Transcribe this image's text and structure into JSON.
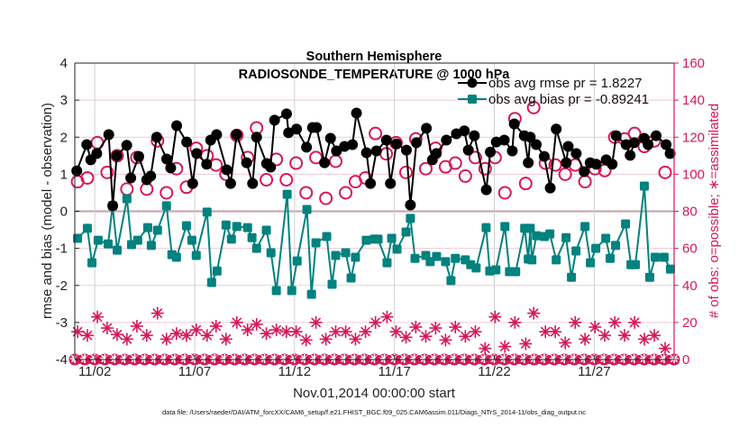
{
  "chart_data": {
    "type": "line",
    "title": [
      "Southern Hemisphere",
      "RADIOSONDE_TEMPERATURE @ 1000 hPa"
    ],
    "xlabel": "Nov.01,2014 00:00:00 start",
    "ylabel": "rmse and bias (model - observation)",
    "ylabel_right": "# of obs: o=possible; ∗=assimilated",
    "footer": "data file: /Users/raeder/DAI/ATM_forcXX/CAM6_setup/f.e21.FHIST_BGC.f09_025.CAM6assim.011/Diags_NTrS_2014-11/obs_diag_output.nc",
    "xlim": [
      0,
      30
    ],
    "ylim": [
      -4,
      4
    ],
    "ylim_right": [
      0,
      160
    ],
    "yticks": [
      "4",
      "3",
      "2",
      "1",
      "0",
      "-1",
      "-2",
      "-3",
      "-4"
    ],
    "yticks_right": [
      "160",
      "140",
      "120",
      "100",
      "80",
      "60",
      "40",
      "20",
      "0"
    ],
    "xticks": [
      {
        "day": 1,
        "label": "11/02"
      },
      {
        "day": 6,
        "label": "11/07"
      },
      {
        "day": 11,
        "label": "11/12"
      },
      {
        "day": 16,
        "label": "11/17"
      },
      {
        "day": 21,
        "label": "11/22"
      },
      {
        "day": 26,
        "label": "11/27"
      }
    ],
    "grid": true,
    "legend_position": "top-right",
    "colors": {
      "rmse": "#000000",
      "bias": "#00827f",
      "count": "#d6185a",
      "grid_v": "#d0d0d0",
      "grid_h": "#f1c9d6",
      "zero": "#c8a9b2"
    },
    "series": [
      {
        "name": "obs avg rmse pr = 1.8227",
        "axis": "left",
        "x": [
          0.1,
          0.6,
          0.8,
          1.1,
          1.7,
          1.9,
          2.1,
          2.6,
          2.8,
          3.2,
          3.6,
          3.8,
          4.1,
          4.6,
          4.8,
          5.1,
          5.6,
          5.9,
          6.1,
          6.6,
          6.8,
          7.1,
          7.6,
          7.8,
          8.1,
          8.6,
          8.9,
          9.1,
          9.6,
          9.8,
          10.0,
          10.6,
          10.7,
          11.1,
          11.6,
          11.9,
          12.1,
          12.5,
          12.8,
          13.1,
          13.5,
          13.9,
          14.1,
          14.6,
          14.8,
          15.1,
          15.6,
          15.8,
          16.1,
          16.6,
          16.8,
          17.1,
          17.6,
          17.9,
          18.1,
          18.6,
          19.1,
          19.5,
          19.7,
          20.0,
          20.6,
          20.8,
          21.1,
          21.5,
          21.9,
          22.0,
          22.5,
          22.7,
          22.8,
          23.1,
          23.5,
          23.8,
          24.1,
          24.6,
          24.7,
          25.1,
          25.5,
          25.8,
          26.1,
          26.6,
          26.9,
          27.1,
          27.6,
          27.8,
          28.0,
          28.5,
          28.7,
          29.1,
          29.6,
          29.8
        ],
        "values": [
          1.09,
          1.8,
          1.39,
          1.56,
          2.07,
          0.15,
          1.5,
          1.78,
          0.9,
          1.48,
          0.85,
          0.95,
          2.0,
          1.41,
          1.17,
          2.31,
          1.87,
          0.75,
          1.56,
          1.27,
          1.92,
          2.07,
          1.12,
          0.75,
          2.07,
          1.31,
          0.75,
          2.0,
          1.29,
          1.19,
          2.46,
          2.63,
          2.12,
          2.22,
          1.73,
          2.26,
          2.26,
          1.31,
          1.97,
          1.63,
          1.75,
          1.8,
          2.65,
          1.58,
          0.75,
          1.63,
          1.92,
          0.75,
          1.82,
          1.65,
          0.17,
          1.85,
          2.24,
          1.39,
          1.56,
          1.92,
          2.09,
          2.17,
          1.65,
          2.04,
          0.58,
          1.6,
          1.87,
          1.92,
          1.63,
          2.36,
          2.04,
          1.31,
          2.0,
          1.8,
          1.48,
          0.63,
          2.22,
          1.31,
          1.75,
          1.56,
          1.07,
          1.31,
          1.27,
          1.39,
          1.27,
          2.04,
          1.8,
          1.51,
          1.85,
          1.97,
          1.8,
          2.04,
          1.8,
          1.56
        ]
      },
      {
        "name": "obs avg bias pr = -0.89241",
        "axis": "left",
        "x": [
          0.14,
          0.63,
          0.86,
          1.17,
          1.67,
          1.89,
          2.12,
          2.61,
          2.84,
          3.15,
          3.65,
          3.83,
          4.14,
          4.59,
          4.86,
          5.09,
          5.59,
          5.86,
          6.08,
          6.62,
          6.85,
          7.12,
          7.57,
          7.84,
          8.11,
          8.65,
          8.87,
          9.1,
          9.59,
          9.82,
          10.09,
          10.63,
          10.86,
          11.13,
          11.62,
          11.85,
          12.07,
          12.61,
          12.88,
          13.06,
          13.56,
          13.83,
          14.05,
          14.59,
          15.0,
          15.18,
          15.63,
          15.86,
          16.13,
          16.58,
          16.8,
          17.03,
          17.57,
          17.79,
          18.11,
          18.56,
          18.83,
          19.05,
          19.55,
          19.82,
          20.09,
          20.59,
          20.77,
          21.08,
          21.53,
          21.76,
          22.07,
          22.52,
          22.7,
          22.8,
          22.88,
          23.11,
          23.51,
          23.78,
          24.1,
          24.59,
          24.86,
          25.09,
          25.54,
          25.81,
          26.08,
          26.58,
          26.8,
          27.07,
          27.57,
          27.84,
          28.06,
          28.51,
          28.78,
          29.05,
          29.5,
          29.82
        ],
        "values": [
          -0.73,
          -0.46,
          -1.39,
          -0.78,
          -0.88,
          0.15,
          -1.05,
          0.34,
          -0.9,
          -0.78,
          -0.44,
          -0.92,
          -0.51,
          0.15,
          -1.17,
          -1.24,
          -0.39,
          -0.78,
          -1.19,
          -0.02,
          -1.92,
          -1.61,
          -0.37,
          -0.75,
          -0.41,
          -0.44,
          -0.71,
          -1.0,
          -0.51,
          -1.12,
          -2.14,
          0.46,
          -2.14,
          -1.34,
          0.05,
          -2.24,
          -0.85,
          -0.68,
          -1.97,
          -1.19,
          -1.12,
          -1.8,
          -1.24,
          -0.78,
          -0.75,
          -0.75,
          -1.39,
          -0.73,
          -1.02,
          -0.56,
          -0.19,
          -1.27,
          -1.19,
          -1.36,
          -1.22,
          -1.36,
          -1.87,
          -1.27,
          -1.31,
          -1.44,
          -1.53,
          -0.44,
          -1.61,
          -1.58,
          -0.41,
          -1.63,
          -1.63,
          -0.46,
          -1.29,
          -0.46,
          -1.31,
          -0.66,
          -0.68,
          -0.61,
          -1.31,
          -0.71,
          -1.78,
          -1.07,
          -0.41,
          -1.39,
          -1.0,
          -0.73,
          -1.27,
          -0.92,
          -0.34,
          -1.44,
          -1.44,
          0.68,
          -1.78,
          -1.24,
          -1.24,
          -1.56
        ]
      },
      {
        "name": "obs possible",
        "axis": "right",
        "marker": "o",
        "x": [
          0.14,
          0.63,
          1.13,
          1.62,
          2.12,
          2.61,
          3.11,
          3.6,
          4.14,
          4.59,
          5.09,
          5.59,
          6.08,
          6.62,
          7.07,
          7.57,
          8.11,
          8.65,
          9.1,
          9.59,
          10.09,
          10.59,
          11.08,
          11.58,
          12.07,
          12.57,
          13.06,
          13.56,
          14.05,
          14.55,
          15.05,
          15.59,
          16.08,
          16.58,
          17.07,
          17.57,
          18.06,
          18.56,
          19.05,
          19.55,
          20.05,
          20.54,
          21.04,
          21.53,
          22.03,
          22.57,
          22.97,
          23.56,
          24.05,
          24.55,
          25.05,
          25.54,
          26.04,
          26.53,
          27.03,
          27.52,
          28.02,
          28.51,
          29.01,
          29.55
        ],
        "values": [
          96,
          98,
          117,
          101,
          110,
          92,
          109,
          92,
          118,
          90,
          103,
          93,
          114,
          110,
          105,
          100,
          121,
          109,
          125,
          97,
          108,
          97,
          106,
          90,
          109,
          87,
          107,
          90,
          96,
          98,
          122,
          111,
          117,
          101,
          119,
          103,
          114,
          104,
          106,
          99,
          109,
          103,
          109,
          90,
          130,
          95,
          136,
          106,
          105,
          100,
          105,
          96,
          103,
          102,
          120,
          119,
          122,
          115,
          118,
          101
        ]
      },
      {
        "name": "obs assimilated",
        "axis": "right",
        "marker": "*",
        "x": [
          0.14,
          0.63,
          1.13,
          1.62,
          2.12,
          2.61,
          3.11,
          3.6,
          4.14,
          4.59,
          5.09,
          5.59,
          6.08,
          6.62,
          7.07,
          7.57,
          8.11,
          8.65,
          9.1,
          9.59,
          10.09,
          10.59,
          11.08,
          11.58,
          12.07,
          12.57,
          13.06,
          13.56,
          14.05,
          14.55,
          15.05,
          15.63,
          16.08,
          16.58,
          17.07,
          17.57,
          18.06,
          18.56,
          19.05,
          19.55,
          20.05,
          20.54,
          21.04,
          21.53,
          22.03,
          22.57,
          22.97,
          23.56,
          24.05,
          24.55,
          25.05,
          25.54,
          26.04,
          26.53,
          27.03,
          27.52,
          28.02,
          28.51,
          29.01,
          29.55
        ],
        "values": [
          15,
          13,
          23,
          17,
          13.5,
          11,
          18,
          13,
          25,
          11,
          14,
          13,
          16,
          13,
          18,
          11,
          20,
          16,
          19,
          14,
          16,
          15,
          15,
          10.5,
          20,
          11,
          15,
          15,
          11,
          15,
          20,
          23,
          15,
          12,
          17.5,
          12.5,
          17,
          10.5,
          17.5,
          12.5,
          15,
          6,
          23,
          7,
          20,
          8.5,
          25,
          15,
          15,
          9,
          20,
          11,
          17.5,
          13,
          20,
          13,
          20,
          11,
          13,
          6
        ]
      },
      {
        "name": "zero-count markers",
        "axis": "right",
        "marker": "o",
        "x_start": 0,
        "x_step": 0.25,
        "x_end": 30,
        "value": 0
      }
    ],
    "legend": [
      "obs avg rmse pr = 1.8227",
      "obs avg bias pr = -0.89241"
    ]
  }
}
